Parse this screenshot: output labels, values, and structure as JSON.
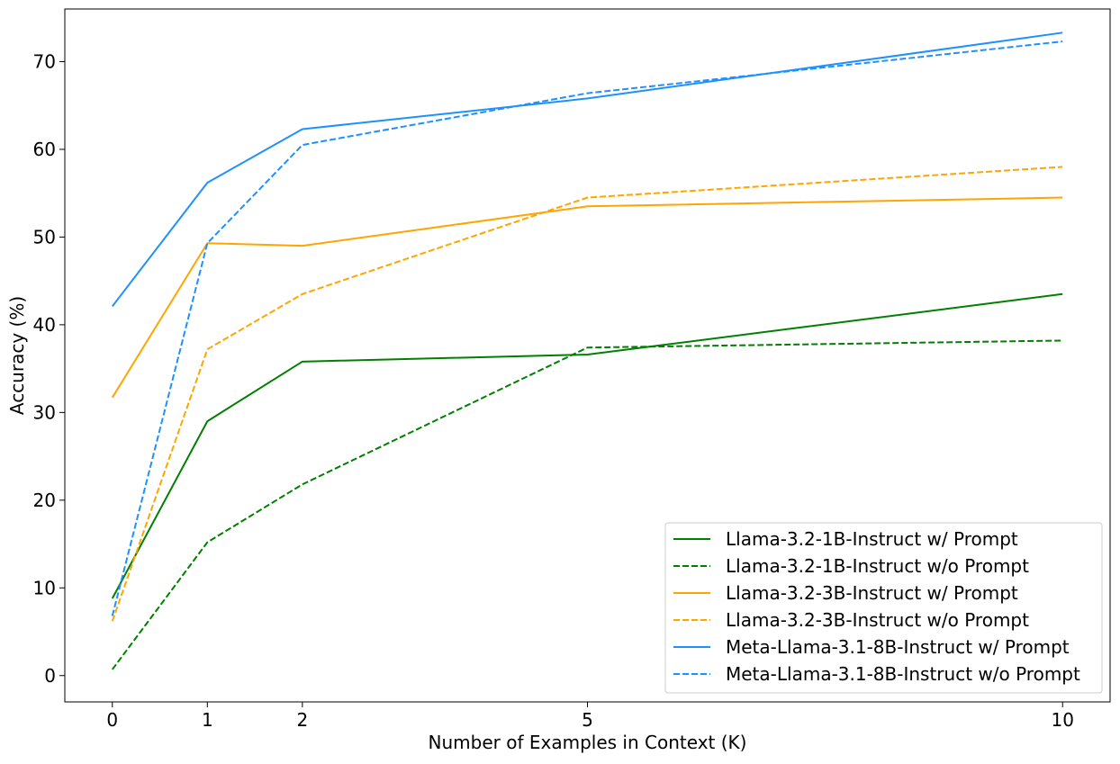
{
  "chart_data": {
    "type": "line",
    "title": "",
    "xlabel": "Number of Examples in Context (K)",
    "ylabel": "Accuracy (%)",
    "x": [
      0,
      1,
      2,
      5,
      10
    ],
    "x_ticks": [
      0,
      1,
      2,
      5,
      10
    ],
    "y_ticks": [
      0,
      10,
      20,
      30,
      40,
      50,
      60,
      70
    ],
    "xlim": [
      -0.5,
      10.5
    ],
    "ylim": [
      -3,
      76
    ],
    "grid": false,
    "legend_position": "bottom-right",
    "series": [
      {
        "name": "Llama-3.2-1B-Instruct w/ Prompt",
        "color": "#008000",
        "dash": "solid",
        "values": [
          8.8,
          29.0,
          35.8,
          36.6,
          43.5
        ]
      },
      {
        "name": "Llama-3.2-1B-Instruct w/o Prompt",
        "color": "#008000",
        "dash": "dashed",
        "values": [
          0.7,
          15.2,
          21.8,
          37.4,
          38.2
        ]
      },
      {
        "name": "Llama-3.2-3B-Instruct w/ Prompt",
        "color": "#FFA500",
        "dash": "solid",
        "values": [
          31.7,
          49.3,
          49.0,
          53.5,
          54.5
        ]
      },
      {
        "name": "Llama-3.2-3B-Instruct w/o Prompt",
        "color": "#FFA500",
        "dash": "dashed",
        "values": [
          6.2,
          37.2,
          43.5,
          54.5,
          58.0
        ]
      },
      {
        "name": "Meta-Llama-3.1-8B-Instruct w/ Prompt",
        "color": "#1E90FF",
        "dash": "solid",
        "values": [
          42.1,
          56.2,
          62.3,
          65.8,
          73.3
        ]
      },
      {
        "name": "Meta-Llama-3.1-8B-Instruct w/o Prompt",
        "color": "#1E90FF",
        "dash": "dashed",
        "values": [
          6.8,
          49.3,
          60.5,
          66.4,
          72.3
        ]
      }
    ]
  }
}
